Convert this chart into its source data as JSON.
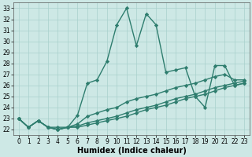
{
  "lines": [
    {
      "x": [
        0,
        1,
        2,
        3,
        4,
        5,
        6,
        7,
        8,
        9,
        10,
        11,
        12,
        13,
        14,
        15,
        16,
        17,
        18,
        19,
        20,
        21,
        22,
        23
      ],
      "y": [
        23,
        22.2,
        22.8,
        22.2,
        22.2,
        22.2,
        23.3,
        26.2,
        26.5,
        28.2,
        31.5,
        33.0,
        29.6,
        32.5,
        31.5,
        27.2,
        27.4,
        27.6,
        25.0,
        24.0,
        27.8,
        27.8,
        26.0,
        26.2
      ]
    },
    {
      "x": [
        0,
        1,
        2,
        3,
        4,
        5,
        6,
        7,
        8,
        9,
        10,
        11,
        12,
        13,
        14,
        15,
        16,
        17,
        18,
        19,
        20,
        21,
        22,
        23
      ],
      "y": [
        23,
        22.2,
        22.8,
        22.2,
        22.0,
        22.2,
        22.5,
        23.2,
        23.5,
        23.8,
        24.0,
        24.5,
        24.8,
        25.0,
        25.2,
        25.5,
        25.8,
        26.0,
        26.2,
        26.5,
        26.8,
        27.0,
        26.5,
        26.5
      ]
    },
    {
      "x": [
        0,
        1,
        2,
        3,
        4,
        5,
        6,
        7,
        8,
        9,
        10,
        11,
        12,
        13,
        14,
        15,
        16,
        17,
        18,
        19,
        20,
        21,
        22,
        23
      ],
      "y": [
        23,
        22.2,
        22.8,
        22.2,
        22.0,
        22.2,
        22.3,
        22.6,
        22.8,
        23.0,
        23.2,
        23.5,
        23.8,
        24.0,
        24.2,
        24.5,
        24.8,
        25.0,
        25.2,
        25.5,
        25.8,
        26.0,
        26.2,
        26.4
      ]
    },
    {
      "x": [
        0,
        1,
        2,
        3,
        4,
        5,
        6,
        7,
        8,
        9,
        10,
        11,
        12,
        13,
        14,
        15,
        16,
        17,
        18,
        19,
        20,
        21,
        22,
        23
      ],
      "y": [
        23,
        22.2,
        22.8,
        22.2,
        22.0,
        22.2,
        22.2,
        22.4,
        22.6,
        22.8,
        23.0,
        23.2,
        23.5,
        23.8,
        24.0,
        24.2,
        24.5,
        24.8,
        25.0,
        25.2,
        25.5,
        25.8,
        26.0,
        26.2
      ]
    }
  ],
  "xlabel": "Humidex (Indice chaleur)",
  "xlim": [
    -0.5,
    23.5
  ],
  "ylim": [
    21.5,
    33.5
  ],
  "yticks": [
    22,
    23,
    24,
    25,
    26,
    27,
    28,
    29,
    30,
    31,
    32,
    33
  ],
  "xticks": [
    0,
    1,
    2,
    3,
    4,
    5,
    6,
    7,
    8,
    9,
    10,
    11,
    12,
    13,
    14,
    15,
    16,
    17,
    18,
    19,
    20,
    21,
    22,
    23
  ],
  "bg_color": "#cde8e5",
  "grid_color": "#a8d0cc",
  "line_color": "#2e7d6e",
  "marker": "D",
  "markersize": 2.2,
  "linewidth": 1.0,
  "tick_fontsize": 5.5,
  "label_fontsize": 7.0
}
